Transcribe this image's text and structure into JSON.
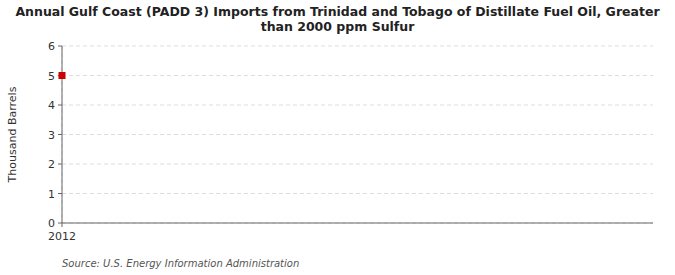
{
  "chart_data": {
    "type": "scatter",
    "title": "Annual Gulf Coast (PADD 3) Imports from Trinidad and Tobago of Distillate Fuel Oil, Greater\nthan 2000 ppm Sulfur",
    "ylabel": "Thousand Barrels",
    "source": "Source: U.S. Energy Information Administration",
    "x": [
      2012
    ],
    "values": [
      5
    ],
    "color": "#cc0000",
    "marker": "square",
    "xlim": [
      2012,
      2022
    ],
    "ylim": [
      0,
      6
    ],
    "xticks": [
      2012
    ],
    "yticks": [
      0,
      1,
      2,
      3,
      4,
      5,
      6
    ],
    "grid": true
  }
}
